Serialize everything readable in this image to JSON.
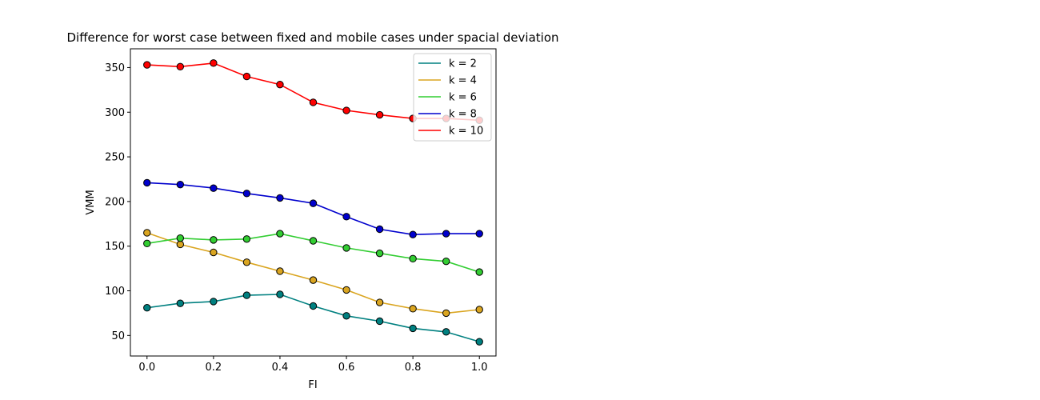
{
  "chart_data": {
    "type": "line",
    "title": "Difference for worst case between fixed and mobile cases under spacial deviation",
    "xlabel": "FI",
    "ylabel": "VMM",
    "x": [
      0.0,
      0.1,
      0.2,
      0.3,
      0.4,
      0.5,
      0.6,
      0.7,
      0.8,
      0.9,
      1.0
    ],
    "xlim": [
      -0.05,
      1.05
    ],
    "ylim": [
      27,
      371
    ],
    "xticks": [
      0.0,
      0.2,
      0.4,
      0.6,
      0.8,
      1.0
    ],
    "xtick_labels": [
      "0.0",
      "0.2",
      "0.4",
      "0.6",
      "0.8",
      "1.0"
    ],
    "yticks": [
      50,
      100,
      150,
      200,
      250,
      300,
      350
    ],
    "ytick_labels": [
      "50",
      "100",
      "150",
      "200",
      "250",
      "300",
      "350"
    ],
    "grid": false,
    "legend_position": "top-right",
    "series": [
      {
        "name": "k = 2",
        "color": "#008080",
        "values": [
          81,
          86,
          88,
          95,
          96,
          83,
          72,
          66,
          58,
          54,
          43
        ]
      },
      {
        "name": "k = 4",
        "color": "#DAA520",
        "values": [
          165,
          152,
          143,
          132,
          122,
          112,
          101,
          87,
          80,
          75,
          79
        ]
      },
      {
        "name": "k = 6",
        "color": "#32CD32",
        "values": [
          153,
          159,
          157,
          158,
          164,
          156,
          148,
          142,
          136,
          133,
          121
        ]
      },
      {
        "name": "k = 8",
        "color": "#0000CD",
        "values": [
          221,
          219,
          215,
          209,
          204,
          198,
          183,
          169,
          163,
          164,
          164
        ]
      },
      {
        "name": "k = 10",
        "color": "#FF0000",
        "values": [
          353,
          351,
          355,
          340,
          331,
          311,
          302,
          297,
          293,
          293,
          291
        ]
      }
    ]
  }
}
